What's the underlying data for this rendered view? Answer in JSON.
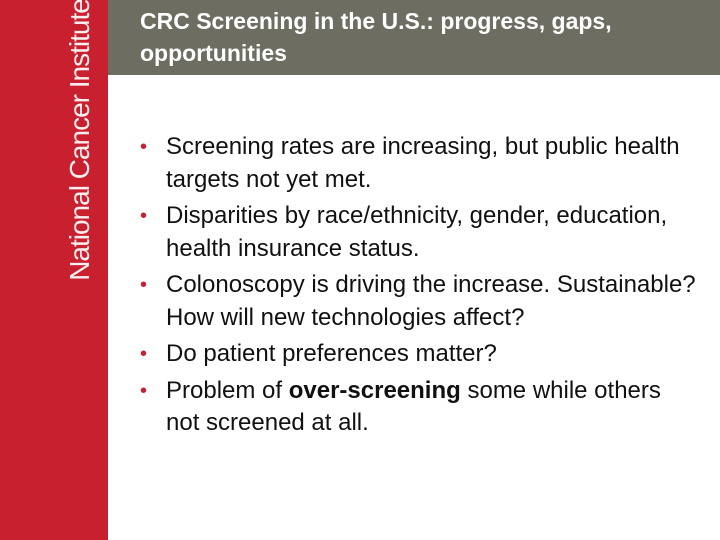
{
  "sidebar": {
    "logo_text": "National Cancer Institute",
    "background_color": "#c8202e"
  },
  "header": {
    "title": "CRC Screening in the U.S.: progress, gaps, opportunities",
    "background_color": "#6d6d61"
  },
  "bullets": {
    "marker": "•",
    "items": [
      {
        "text": "Screening rates are increasing, but public health targets not yet met."
      },
      {
        "text": "Disparities by race/ethnicity, gender, education, health insurance status."
      },
      {
        "text": "Colonoscopy is driving the increase. Sustainable? How will new technologies affect?"
      },
      {
        "text": "Do patient preferences matter?"
      },
      {
        "before": "Problem of ",
        "bold": "over-screening",
        "after": " some while others not screened at all."
      }
    ]
  }
}
